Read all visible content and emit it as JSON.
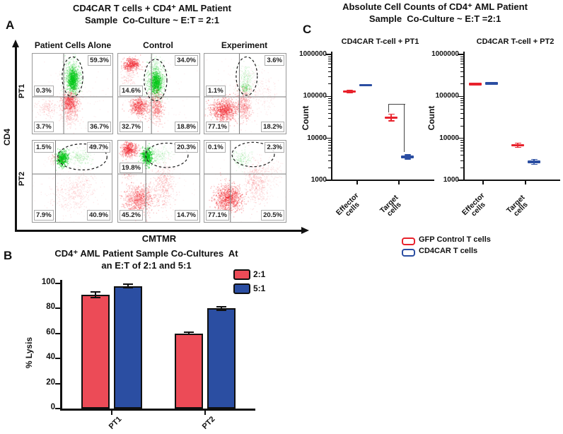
{
  "figure": {
    "panel_a": {
      "label": "A",
      "title1": "CD4CAR T cells + CD4⁺ AML Patient",
      "title2": "Sample  Co-Culture ~ E:T = 2:1",
      "columns": [
        "Patient Cells Alone",
        "Control",
        "Experiment"
      ],
      "rows": [
        "PT1",
        "PT2"
      ],
      "xlabel": "CMTMR",
      "ylabel": "CD4"
    },
    "panel_b": {
      "label": "B",
      "title1": "CD4⁺ AML Patient Sample Co-Cultures  At",
      "title2": "an E:T of 2:1 and 5:1"
    },
    "panel_c": {
      "label": "C",
      "title1": "Absolute Cell Counts of CD4⁺ AML Patient",
      "title2": "Sample  Co-Culture ~ E:T =2:1"
    }
  },
  "chart_data": [
    {
      "id": "flow-cytometry-panel",
      "type": "scatter",
      "title": "CD4CAR T cells + CD4⁺ AML Patient Sample Co-Culture ~ E:T = 2:1",
      "xlabel": "CMTMR",
      "ylabel": "CD4",
      "columns": [
        "Patient Cells Alone",
        "Control",
        "Experiment"
      ],
      "rows": [
        "PT1",
        "PT2"
      ],
      "dot_colors": {
        "red_cells": "#f01820",
        "green_cells": "#00c818"
      },
      "plots": [
        {
          "row": "PT1",
          "column": "Patient Cells Alone",
          "gate": "dashed-ellipse",
          "percents": {
            "ml": "0.3%",
            "tr": "59.3%",
            "bl": "3.7%",
            "br": "36.7%"
          },
          "ellipse": [
            0.5,
            0.29,
            0.13,
            0.25
          ],
          "clusters": [
            [
              0.5,
              0.3,
              0.05,
              0.1,
              900,
              "g",
              0.18
            ],
            [
              0.5,
              0.33,
              0.028,
              0.065,
              500,
              "g",
              0.4
            ],
            [
              0.46,
              0.6,
              0.05,
              0.06,
              600,
              "r",
              0.22
            ],
            [
              0.46,
              0.72,
              0.055,
              0.09,
              350,
              "r",
              0.12
            ],
            [
              0.17,
              0.68,
              0.065,
              0.055,
              130,
              "r",
              0.12
            ],
            [
              0.55,
              0.55,
              0.28,
              0.22,
              130,
              "r",
              0.06
            ]
          ]
        },
        {
          "row": "PT1",
          "column": "Control",
          "gate": "dashed-ellipse",
          "percents": {
            "ml": "14.6%",
            "tr": "34.0%",
            "bl": "32.7%",
            "br": "18.8%"
          },
          "ellipse": [
            0.46,
            0.33,
            0.14,
            0.26
          ],
          "clusters": [
            [
              0.16,
              0.13,
              0.05,
              0.042,
              400,
              "r",
              0.3
            ],
            [
              0.46,
              0.33,
              0.05,
              0.105,
              900,
              "g",
              0.18
            ],
            [
              0.46,
              0.36,
              0.03,
              0.065,
              500,
              "g",
              0.4
            ],
            [
              0.25,
              0.66,
              0.055,
              0.06,
              550,
              "r",
              0.25
            ],
            [
              0.47,
              0.66,
              0.042,
              0.095,
              420,
              "r",
              0.2
            ],
            [
              0.13,
              0.32,
              0.045,
              0.07,
              90,
              "r",
              0.12
            ],
            [
              0.35,
              0.5,
              0.28,
              0.24,
              140,
              "r",
              0.06
            ]
          ]
        },
        {
          "row": "PT1",
          "column": "Experiment",
          "gate": "dashed-ellipse",
          "percents": {
            "ml": "1.1%",
            "tr": "3.6%",
            "bl": "77.1%",
            "br": "18.2%"
          },
          "ellipse": [
            0.52,
            0.28,
            0.13,
            0.24
          ],
          "clusters": [
            [
              0.51,
              0.3,
              0.05,
              0.085,
              180,
              "g",
              0.1
            ],
            [
              0.5,
              0.42,
              0.03,
              0.035,
              90,
              "g",
              0.22
            ],
            [
              0.24,
              0.7,
              0.08,
              0.07,
              900,
              "r",
              0.26
            ],
            [
              0.48,
              0.63,
              0.05,
              0.1,
              420,
              "r",
              0.18
            ],
            [
              0.7,
              0.5,
              0.1,
              0.13,
              140,
              "r",
              0.08
            ],
            [
              0.5,
              0.45,
              0.28,
              0.25,
              160,
              "r",
              0.06
            ]
          ]
        },
        {
          "row": "PT2",
          "column": "Patient Cells Alone",
          "gate": "dashed-ellipse",
          "percents": {
            "tl": "1.5%",
            "tr": "49.7%",
            "bl": "7.9%",
            "br": "40.9%"
          },
          "ellipse": [
            0.63,
            0.2,
            0.31,
            0.16
          ],
          "clusters": [
            [
              0.37,
              0.21,
              0.035,
              0.045,
              480,
              "g",
              0.45
            ],
            [
              0.6,
              0.2,
              0.08,
              0.05,
              220,
              "g",
              0.1
            ],
            [
              0.3,
              0.21,
              0.05,
              0.04,
              60,
              "r",
              0.12
            ],
            [
              0.47,
              0.67,
              0.13,
              0.12,
              280,
              "r",
              0.09
            ],
            [
              0.62,
              0.54,
              0.09,
              0.1,
              150,
              "r",
              0.09
            ],
            [
              0.5,
              0.55,
              0.3,
              0.25,
              130,
              "r",
              0.05
            ]
          ]
        },
        {
          "row": "PT2",
          "column": "Control",
          "gate": "dashed-ellipse",
          "percents": {
            "ml": "19.8%",
            "tr": "20.3%",
            "bl": "45.2%",
            "br": "14.7%"
          },
          "ellipse": [
            0.6,
            0.18,
            0.26,
            0.15
          ],
          "clusters": [
            [
              0.13,
              0.1,
              0.05,
              0.045,
              450,
              "r",
              0.3
            ],
            [
              0.35,
              0.19,
              0.035,
              0.05,
              500,
              "g",
              0.45
            ],
            [
              0.5,
              0.17,
              0.07,
              0.05,
              170,
              "g",
              0.1
            ],
            [
              0.25,
              0.72,
              0.085,
              0.09,
              850,
              "r",
              0.22
            ],
            [
              0.55,
              0.55,
              0.07,
              0.13,
              380,
              "r",
              0.13
            ],
            [
              0.12,
              0.38,
              0.04,
              0.08,
              110,
              "r",
              0.12
            ],
            [
              0.5,
              0.5,
              0.3,
              0.27,
              150,
              "r",
              0.05
            ]
          ]
        },
        {
          "row": "PT2",
          "column": "Experiment",
          "gate": "dashed-ellipse",
          "percents": {
            "tl": "0.1%",
            "tr": "2.3%",
            "bl": "77.1%",
            "br": "20.5%"
          },
          "ellipse": [
            0.6,
            0.17,
            0.26,
            0.15
          ],
          "clusters": [
            [
              0.45,
              0.22,
              0.06,
              0.05,
              150,
              "g",
              0.12
            ],
            [
              0.29,
              0.7,
              0.085,
              0.08,
              1000,
              "r",
              0.26
            ],
            [
              0.63,
              0.52,
              0.07,
              0.13,
              380,
              "r",
              0.13
            ],
            [
              0.8,
              0.38,
              0.08,
              0.11,
              130,
              "r",
              0.07
            ],
            [
              0.5,
              0.52,
              0.3,
              0.26,
              150,
              "r",
              0.05
            ]
          ]
        }
      ]
    },
    {
      "id": "lysis-bar-chart",
      "type": "bar",
      "title": "CD4⁺ AML Patient Sample Co-Cultures At an E:T of 2:1 and 5:1",
      "categories": [
        "PT1",
        "PT2"
      ],
      "series": [
        {
          "name": "2:1",
          "color": "#EC4B57",
          "values": [
            91,
            60
          ],
          "errors": [
            2.2,
            0.8
          ]
        },
        {
          "name": "5:1",
          "color": "#2B4EA2",
          "values": [
            98,
            80
          ],
          "errors": [
            1.6,
            1.2
          ]
        }
      ],
      "ylabel": "% Lysis",
      "ylim": [
        0,
        100
      ],
      "yticks": [
        0,
        20,
        40,
        60,
        80,
        100
      ],
      "legend_position": "top-right"
    },
    {
      "id": "counts-pt1",
      "type": "scatter",
      "title": "CD4CAR T-cell + PT1",
      "categories": [
        "Effector cells",
        "Target cells"
      ],
      "series": [
        {
          "name": "GFP Control T cells",
          "color": "#E8222C",
          "values": [
            130000,
            31000
          ],
          "err_log": [
            0.03,
            0.08
          ]
        },
        {
          "name": "CD4CAR T cells",
          "color": "#2B4EA2",
          "values": [
            185000,
            3600
          ],
          "err_log": [
            0.02,
            0.05
          ]
        }
      ],
      "ylabel": "Count",
      "yscale": "log",
      "ylim": [
        1000,
        1000000
      ],
      "yticks": [
        1000000,
        100000,
        10000,
        1000
      ],
      "significance_bracket": {
        "category": "Target cells",
        "between": [
          "GFP Control T cells",
          "CD4CAR T cells"
        ]
      }
    },
    {
      "id": "counts-pt2",
      "type": "scatter",
      "title": "CD4CAR T-cell + PT2",
      "categories": [
        "Effector cells",
        "Target cells"
      ],
      "series": [
        {
          "name": "GFP Control T cells",
          "color": "#E8222C",
          "values": [
            195000,
            6800
          ],
          "err_log": [
            0.02,
            0.05
          ]
        },
        {
          "name": "CD4CAR T cells",
          "color": "#2B4EA2",
          "values": [
            205000,
            2750
          ],
          "err_log": [
            0.02,
            0.06
          ]
        }
      ],
      "ylabel": "Count",
      "yscale": "log",
      "ylim": [
        1000,
        1000000
      ],
      "yticks": [
        1000000,
        100000,
        10000,
        1000
      ]
    }
  ]
}
